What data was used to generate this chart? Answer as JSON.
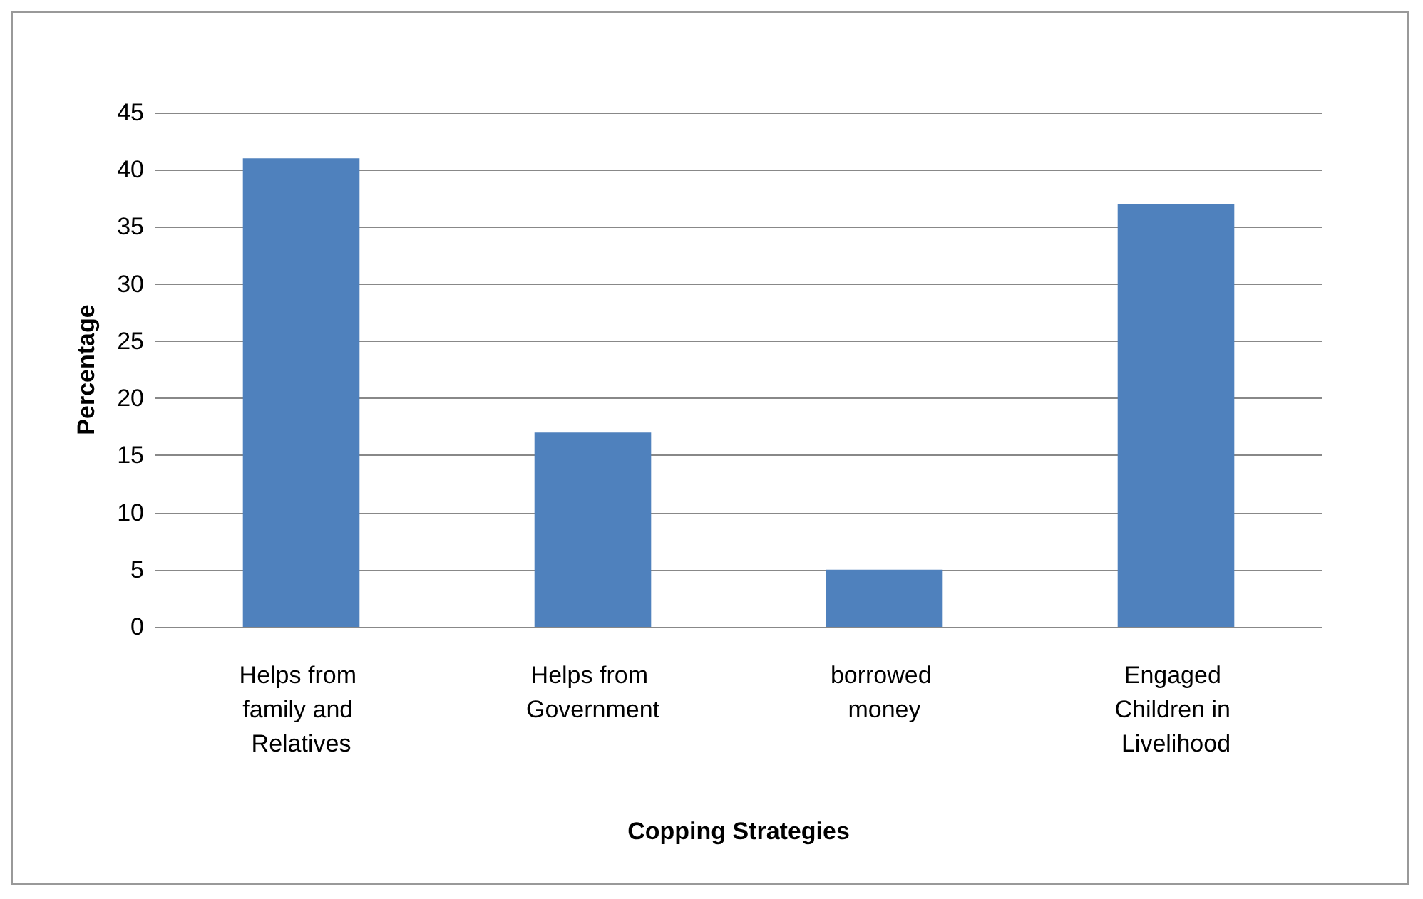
{
  "chart_data": {
    "type": "bar",
    "xlabel": "Copping Strategies",
    "ylabel": "Percentage",
    "categories": [
      "Helps from family and Relatives",
      "Helps from Government",
      "borrowed money",
      "Engaged Children in Livelihood"
    ],
    "values": [
      41,
      17,
      5,
      37
    ],
    "color": "#4f81bd",
    "ylim": [
      0,
      45
    ],
    "yticks": [
      0,
      5,
      10,
      15,
      20,
      25,
      30,
      35,
      40,
      45
    ],
    "grid": "y"
  }
}
